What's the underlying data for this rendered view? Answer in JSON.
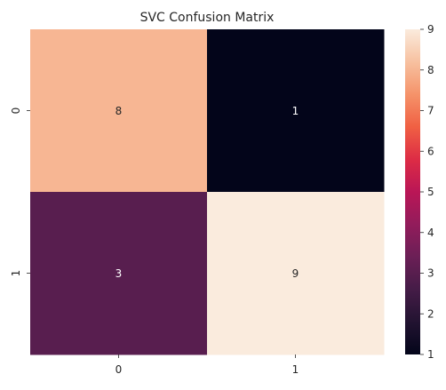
{
  "chart_data": {
    "type": "heatmap",
    "title": "SVC Confusion Matrix",
    "xlabel": "",
    "ylabel": "",
    "x_categories": [
      "0",
      "1"
    ],
    "y_categories": [
      "0",
      "1"
    ],
    "matrix": [
      [
        8,
        1
      ],
      [
        3,
        9
      ]
    ],
    "colormap": "rocket",
    "colorbar": {
      "min": 1,
      "max": 9,
      "ticks": [
        "1",
        "2",
        "3",
        "4",
        "5",
        "6",
        "7",
        "8",
        "9"
      ]
    },
    "annotations": true,
    "grid": false
  }
}
